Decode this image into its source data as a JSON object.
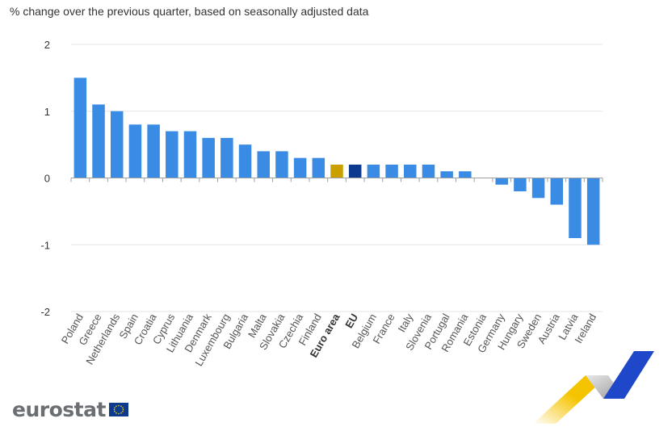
{
  "header": {
    "subtitle": "% change over the previous quarter, based on seasonally adjusted data"
  },
  "logo": {
    "text": "eurostat"
  },
  "colors": {
    "bar_default": "#3a8be4",
    "bar_euro_area": "#c9a000",
    "bar_eu": "#0d3a8c",
    "grid": "#e6e6e6",
    "axis": "#9aa0a6"
  },
  "chart_data": {
    "type": "bar",
    "title": "",
    "xlabel": "",
    "ylabel": "",
    "ylim": [
      -2,
      2
    ],
    "yticks": [
      -2,
      -1,
      0,
      1,
      2
    ],
    "grid": true,
    "categories": [
      "Poland",
      "Greece",
      "Netherlands",
      "Spain",
      "Croatia",
      "Cyprus",
      "Lithuania",
      "Denmark",
      "Luxembourg",
      "Bulgaria",
      "Malta",
      "Slovakia",
      "Czechia",
      "Finland",
      "Euro area",
      "EU",
      "Belgium",
      "France",
      "Italy",
      "Slovenia",
      "Portugal",
      "Romania",
      "Estonia",
      "Germany",
      "Hungary",
      "Sweden",
      "Austria",
      "Latvia",
      "Ireland"
    ],
    "values": [
      1.5,
      1.1,
      1.0,
      0.8,
      0.8,
      0.7,
      0.7,
      0.6,
      0.6,
      0.5,
      0.4,
      0.4,
      0.3,
      0.3,
      0.2,
      0.2,
      0.2,
      0.2,
      0.2,
      0.2,
      0.1,
      0.1,
      0.0,
      -0.1,
      -0.2,
      -0.3,
      -0.4,
      -0.9,
      -1.0
    ],
    "highlight": {
      "Euro area": "bar_euro_area",
      "EU": "bar_eu"
    }
  }
}
